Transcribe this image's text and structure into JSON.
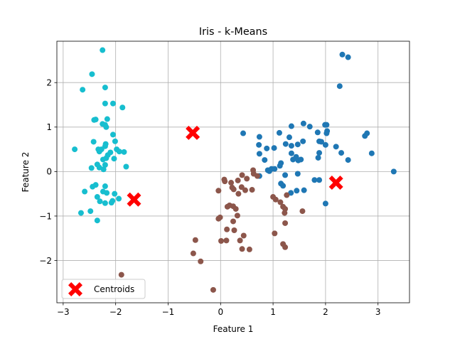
{
  "chart_data": {
    "type": "scatter",
    "title": "Iris - k-Means",
    "xlabel": "Feature 1",
    "ylabel": "Feature 2",
    "xlim": [
      -3.12,
      3.6
    ],
    "ylim": [
      -2.95,
      2.93
    ],
    "x_ticks": [
      -3,
      -2,
      -1,
      0,
      1,
      2,
      3
    ],
    "y_ticks": [
      -2,
      -1,
      0,
      1,
      2
    ],
    "x_tick_labels": [
      "−3",
      "−2",
      "−1",
      "0",
      "1",
      "2",
      "3"
    ],
    "y_tick_labels": [
      "−2",
      "−1",
      "0",
      "1",
      "2"
    ],
    "grid": true,
    "legend": {
      "position": "lower-left",
      "entries": [
        "Centroids"
      ]
    },
    "colors": {
      "cluster_cyan": "#17becf",
      "cluster_blue": "#1f77b4",
      "cluster_brown": "#8c564b",
      "centroid": "#ff0000"
    },
    "series": [
      {
        "color": "cluster_cyan",
        "points": [
          [
            -2.25,
            2.73
          ],
          [
            -2.45,
            2.19
          ],
          [
            -2.63,
            1.84
          ],
          [
            -2.2,
            1.89
          ],
          [
            -2.2,
            1.53
          ],
          [
            -2.05,
            1.53
          ],
          [
            -1.87,
            1.44
          ],
          [
            -2.38,
            1.17
          ],
          [
            -2.41,
            1.16
          ],
          [
            -2.16,
            1.18
          ],
          [
            -2.25,
            1.07
          ],
          [
            -2.2,
            1.05
          ],
          [
            -2.18,
            1.0
          ],
          [
            -2.05,
            0.83
          ],
          [
            -2.42,
            0.67
          ],
          [
            -2.19,
            0.62
          ],
          [
            -2.01,
            0.68
          ],
          [
            -2.78,
            0.5
          ],
          [
            -2.33,
            0.5
          ],
          [
            -2.2,
            0.57
          ],
          [
            -2.27,
            0.5
          ],
          [
            -2.31,
            0.45
          ],
          [
            -1.98,
            0.5
          ],
          [
            -1.93,
            0.45
          ],
          [
            -1.84,
            0.44
          ],
          [
            -2.1,
            0.43
          ],
          [
            -2.15,
            0.37
          ],
          [
            -2.24,
            0.27
          ],
          [
            -2.18,
            0.3
          ],
          [
            -2.03,
            0.29
          ],
          [
            -2.2,
            0.15
          ],
          [
            -2.35,
            0.16
          ],
          [
            -2.46,
            0.08
          ],
          [
            -2.31,
            0.09
          ],
          [
            -2.23,
            0.05
          ],
          [
            -1.8,
            0.11
          ],
          [
            -2.59,
            -0.45
          ],
          [
            -2.44,
            -0.34
          ],
          [
            -2.38,
            -0.3
          ],
          [
            -2.2,
            -0.33
          ],
          [
            -2.24,
            -0.45
          ],
          [
            -2.17,
            -0.48
          ],
          [
            -2.02,
            -0.5
          ],
          [
            -2.35,
            -0.57
          ],
          [
            -2.3,
            -0.67
          ],
          [
            -2.2,
            -0.71
          ],
          [
            -2.08,
            -0.7
          ],
          [
            -2.06,
            -0.66
          ],
          [
            -1.94,
            -0.61
          ],
          [
            -2.66,
            -0.93
          ],
          [
            -2.48,
            -0.89
          ],
          [
            -2.35,
            -1.1
          ]
        ]
      },
      {
        "color": "cluster_blue",
        "points": [
          [
            2.32,
            2.63
          ],
          [
            2.43,
            2.57
          ],
          [
            2.27,
            1.92
          ],
          [
            1.58,
            1.08
          ],
          [
            1.7,
            1.01
          ],
          [
            1.35,
            1.02
          ],
          [
            1.99,
            1.05
          ],
          [
            2.02,
            1.05
          ],
          [
            2.03,
            0.91
          ],
          [
            2.02,
            0.86
          ],
          [
            1.12,
            0.87
          ],
          [
            1.85,
            0.88
          ],
          [
            0.43,
            0.86
          ],
          [
            2.79,
            0.86
          ],
          [
            2.75,
            0.8
          ],
          [
            0.74,
            0.78
          ],
          [
            1.31,
            0.77
          ],
          [
            1.88,
            0.68
          ],
          [
            1.92,
            0.67
          ],
          [
            1.57,
            0.68
          ],
          [
            1.47,
            0.61
          ],
          [
            1.24,
            0.62
          ],
          [
            0.73,
            0.6
          ],
          [
            1.35,
            0.58
          ],
          [
            2.0,
            0.6
          ],
          [
            2.2,
            0.56
          ],
          [
            0.88,
            0.52
          ],
          [
            1.02,
            0.53
          ],
          [
            2.88,
            0.41
          ],
          [
            1.35,
            0.41
          ],
          [
            0.74,
            0.4
          ],
          [
            2.3,
            0.42
          ],
          [
            1.88,
            0.42
          ],
          [
            1.86,
            0.31
          ],
          [
            1.44,
            0.33
          ],
          [
            1.38,
            0.27
          ],
          [
            1.48,
            0.25
          ],
          [
            1.53,
            0.27
          ],
          [
            0.84,
            0.26
          ],
          [
            2.43,
            0.26
          ],
          [
            1.15,
            0.19
          ],
          [
            1.13,
            0.13
          ],
          [
            0.97,
            0.06
          ],
          [
            1.03,
            0.06
          ],
          [
            0.9,
            0.03
          ],
          [
            0.93,
            0.01
          ],
          [
            1.47,
            -0.05
          ],
          [
            1.23,
            -0.08
          ],
          [
            0.74,
            -0.1
          ],
          [
            3.3,
            0.0
          ],
          [
            1.88,
            -0.19
          ],
          [
            1.79,
            -0.19
          ],
          [
            1.15,
            -0.27
          ],
          [
            1.19,
            -0.32
          ],
          [
            1.45,
            -0.43
          ],
          [
            1.59,
            -0.42
          ],
          [
            1.34,
            -0.48
          ],
          [
            2.0,
            -0.72
          ]
        ]
      },
      {
        "color": "cluster_brown",
        "points": [
          [
            0.62,
            0.03
          ],
          [
            0.63,
            -0.05
          ],
          [
            0.41,
            -0.08
          ],
          [
            0.7,
            -0.1
          ],
          [
            0.5,
            -0.16
          ],
          [
            0.07,
            -0.18
          ],
          [
            0.08,
            -0.22
          ],
          [
            0.33,
            -0.2
          ],
          [
            0.2,
            -0.25
          ],
          [
            0.4,
            -0.35
          ],
          [
            0.22,
            -0.36
          ],
          [
            0.6,
            -0.41
          ],
          [
            0.47,
            -0.42
          ],
          [
            -0.04,
            -0.43
          ],
          [
            0.25,
            -0.4
          ],
          [
            0.34,
            -0.5
          ],
          [
            1.26,
            -0.53
          ],
          [
            1.0,
            -0.57
          ],
          [
            1.14,
            -0.69
          ],
          [
            1.05,
            -0.63
          ],
          [
            1.19,
            -0.79
          ],
          [
            1.23,
            -0.84
          ],
          [
            1.22,
            -0.93
          ],
          [
            1.56,
            -0.89
          ],
          [
            0.17,
            -0.76
          ],
          [
            0.24,
            -0.78
          ],
          [
            0.13,
            -0.79
          ],
          [
            0.29,
            -0.84
          ],
          [
            0.32,
            -0.99
          ],
          [
            -0.04,
            -1.06
          ],
          [
            -0.01,
            -1.03
          ],
          [
            0.24,
            -1.12
          ],
          [
            1.23,
            -1.16
          ],
          [
            0.12,
            -1.3
          ],
          [
            0.26,
            -1.32
          ],
          [
            1.03,
            -1.39
          ],
          [
            0.44,
            -1.44
          ],
          [
            -0.48,
            -1.54
          ],
          [
            0.01,
            -1.56
          ],
          [
            0.11,
            -1.55
          ],
          [
            0.37,
            -1.55
          ],
          [
            1.19,
            -1.63
          ],
          [
            1.23,
            -1.7
          ],
          [
            0.41,
            -1.74
          ],
          [
            0.55,
            -1.75
          ],
          [
            -0.52,
            -1.84
          ],
          [
            -0.38,
            -2.02
          ],
          [
            -0.14,
            -2.66
          ],
          [
            -1.89,
            -2.32
          ]
        ]
      }
    ],
    "centroids": {
      "name": "Centroids",
      "color": "centroid",
      "points": [
        [
          -0.53,
          0.87
        ],
        [
          2.2,
          -0.25
        ],
        [
          -1.65,
          -0.63
        ]
      ]
    }
  }
}
